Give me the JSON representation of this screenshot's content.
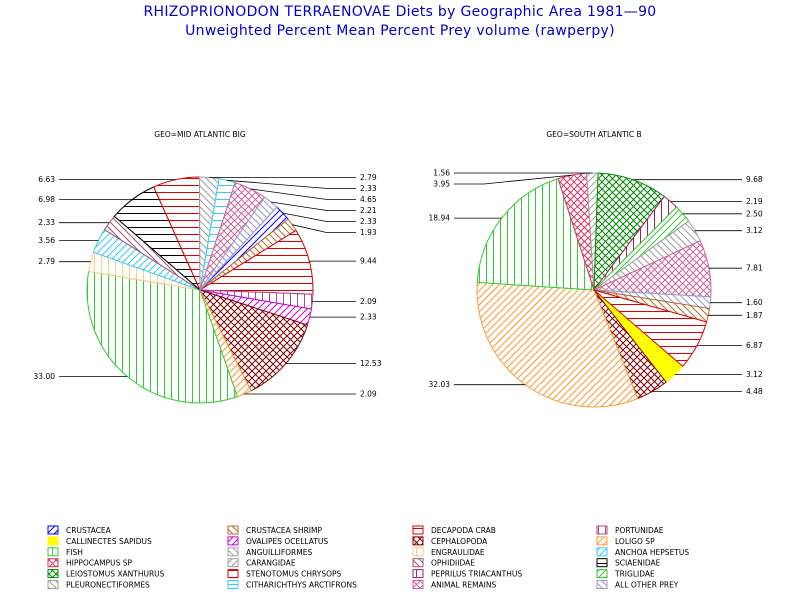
{
  "title": "RHIZOPRIONODON TERRAENOVAE Diets by Geographic Area 1981—90",
  "subtitle": "Unweighted Percent Mean Percent Prey  volume (rawperpy)",
  "chart_data": {
    "type": "pie",
    "categories": [
      "CRUSTACEA",
      "CRUSTACEA SHRIMP",
      "DECAPODA CRAB",
      "PORTUNIDAE",
      "CALLINECTES SAPIDUS",
      "OVALIPES OCELLATUS",
      "CEPHALOPODA",
      "LOLIGO SP",
      "FISH",
      "ANGUILLIFORMES",
      "ENGRAULIDAE",
      "ANCHOA HEPSETUS",
      "HIPPOCAMPUS SP",
      "CARANGIDAE",
      "OPHIDIIDAE",
      "SCIAENIDAE",
      "LEIOSTOMUS XANTHURUS",
      "STENOTOMUS CHRYSOPS",
      "PEPRILUS TRIACANTHUS",
      "TRIGLIDAE",
      "PLEURONECTIFORMES",
      "CITHARICHTHYS ARCTIFRONS",
      "ANIMAL REMAINS",
      "ALL OTHER PREY"
    ],
    "legend_colors": [
      "#0000ff",
      "#b86b2e",
      "#dd0000",
      "#aa4a8a",
      "#ffff00",
      "#cc00cc",
      "#800000",
      "#ff9a33",
      "#33cc33",
      "#a0a0a0",
      "#ffcc88",
      "#33ccff",
      "#dd3366",
      "#a0a0a0",
      "#a05070",
      "#000000",
      "#008800",
      "#dd0000",
      "#a02060",
      "#33cc33",
      "#a0a0a0",
      "#33ccff",
      "#cc6699",
      "#9999cc"
    ],
    "pies": [
      {
        "label": "GEO=MID ATLANTIC BIG",
        "slices": [
          {
            "category": "CRUSTACEA",
            "value": 2.33
          },
          {
            "category": "CRUSTACEA SHRIMP",
            "value": 1.93
          },
          {
            "category": "DECAPODA CRAB",
            "value": 9.44
          },
          {
            "category": "PORTUNIDAE",
            "value": 2.09
          },
          {
            "category": "OVALIPES OCELLATUS",
            "value": 2.33
          },
          {
            "category": "CEPHALOPODA",
            "value": 12.53
          },
          {
            "category": "LOLIGO SP",
            "value": 2.09
          },
          {
            "category": "FISH",
            "value": 33.0
          },
          {
            "category": "ENGRAULIDAE",
            "value": 2.79
          },
          {
            "category": "ANCHOA HEPSETUS",
            "value": 3.56
          },
          {
            "category": "OPHIDIIDAE",
            "value": 2.33
          },
          {
            "category": "SCIAENIDAE",
            "value": 6.98
          },
          {
            "category": "STENOTOMUS CHRYSOPS",
            "value": 6.63
          },
          {
            "category": "PLEURONECTIFORMES",
            "value": 2.79
          },
          {
            "category": "CITHARICHTHYS ARCTIFRONS",
            "value": 2.33
          },
          {
            "category": "ANIMAL REMAINS",
            "value": 4.65
          },
          {
            "category": "ALL OTHER PREY",
            "value": 2.21
          }
        ]
      },
      {
        "label": "GEO=SOUTH ATLANTIC B",
        "slices": [
          {
            "category": "CALLINECTES SAPIDUS",
            "value": 3.12
          },
          {
            "category": "CEPHALOPODA",
            "value": 4.48
          },
          {
            "category": "LOLIGO SP",
            "value": 32.03
          },
          {
            "category": "FISH",
            "value": 18.94
          },
          {
            "category": "HIPPOCAMPUS SP",
            "value": 3.95
          },
          {
            "category": "CARANGIDAE",
            "value": 1.56
          },
          {
            "category": "LEIOSTOMUS XANTHURUS",
            "value": 9.68
          },
          {
            "category": "PEPRILUS TRIACANTHUS",
            "value": 2.19
          },
          {
            "category": "TRIGLIDAE",
            "value": 2.5
          },
          {
            "category": "PLEURONECTIFORMES",
            "value": 3.12
          },
          {
            "category": "ANIMAL REMAINS",
            "value": 7.81
          },
          {
            "category": "ALL OTHER PREY",
            "value": 1.6
          },
          {
            "category": "CRUSTACEA SHRIMP",
            "value": 1.87
          },
          {
            "category": "DECAPODA CRAB",
            "value": 6.87
          }
        ]
      }
    ],
    "legend_placement": "bottom"
  }
}
